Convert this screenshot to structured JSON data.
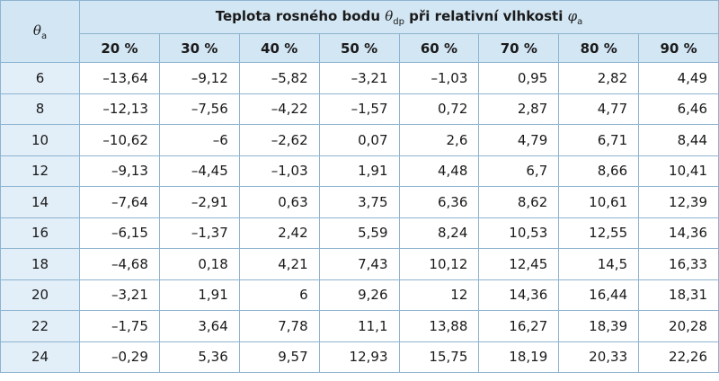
{
  "header": {
    "row_label": {
      "symbol": "θ",
      "sub": "a"
    },
    "title": {
      "text1": "Teplota rosného bodu ",
      "symbol1": "θ",
      "sub1": "dp",
      "text2": " při relativní vlhkosti ",
      "symbol2": "φ",
      "sub2": "a"
    }
  },
  "columns": [
    "20 %",
    "30 %",
    "40 %",
    "50 %",
    "60 %",
    "70 %",
    "80 %",
    "90 %"
  ],
  "rows": [
    [
      "6",
      "–13,64",
      "–9,12",
      "–5,82",
      "–3,21",
      "–1,03",
      "0,95",
      "2,82",
      "4,49"
    ],
    [
      "8",
      "–12,13",
      "–7,56",
      "–4,22",
      "–1,57",
      "0,72",
      "2,87",
      "4,77",
      "6,46"
    ],
    [
      "10",
      "–10,62",
      "–6",
      "–2,62",
      "0,07",
      "2,6",
      "4,79",
      "6,71",
      "8,44"
    ],
    [
      "12",
      "–9,13",
      "–4,45",
      "–1,03",
      "1,91",
      "4,48",
      "6,7",
      "8,66",
      "10,41"
    ],
    [
      "14",
      "–7,64",
      "–2,91",
      "0,63",
      "3,75",
      "6,36",
      "8,62",
      "10,61",
      "12,39"
    ],
    [
      "16",
      "–6,15",
      "–1,37",
      "2,42",
      "5,59",
      "8,24",
      "10,53",
      "12,55",
      "14,36"
    ],
    [
      "18",
      "–4,68",
      "0,18",
      "4,21",
      "7,43",
      "10,12",
      "12,45",
      "14,5",
      "16,33"
    ],
    [
      "20",
      "–3,21",
      "1,91",
      "6",
      "9,26",
      "12",
      "14,36",
      "16,44",
      "18,31"
    ],
    [
      "22",
      "–1,75",
      "3,64",
      "7,78",
      "11,1",
      "13,88",
      "16,27",
      "18,39",
      "20,28"
    ],
    [
      "24",
      "–0,29",
      "5,36",
      "9,57",
      "12,93",
      "15,75",
      "18,19",
      "20,33",
      "22,26"
    ]
  ]
}
